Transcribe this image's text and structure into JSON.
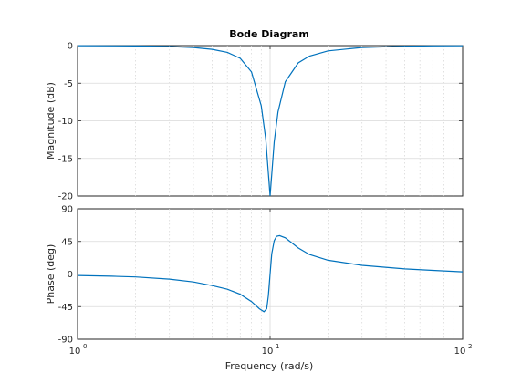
{
  "chart_data": {
    "type": "line",
    "title": "Bode Diagram",
    "xlabel": "Frequency  (rad/s)",
    "xscale": "log",
    "xlim": [
      1,
      100
    ],
    "xticks": [
      {
        "value": 1,
        "base": "10",
        "exp": "0"
      },
      {
        "value": 10,
        "base": "10",
        "exp": "1"
      },
      {
        "value": 100,
        "base": "10",
        "exp": "2"
      }
    ],
    "grid": true,
    "color": "#0072bd",
    "panels": [
      {
        "name": "magnitude",
        "ylabel": "Magnitude (dB)",
        "ylim": [
          -20,
          0
        ],
        "yticks": [
          0,
          -5,
          -10,
          -15,
          -20
        ],
        "ytick_labels": [
          "0",
          "-5",
          "-10",
          "-15",
          "-20"
        ],
        "x": [
          1,
          2,
          3,
          4,
          5,
          6,
          7,
          8,
          9,
          9.5,
          10,
          10.5,
          11,
          12,
          14,
          16,
          20,
          30,
          50,
          70,
          100
        ],
        "y": [
          -0.01,
          -0.05,
          -0.12,
          -0.25,
          -0.5,
          -0.9,
          -1.7,
          -3.5,
          -8.0,
          -12.5,
          -20.0,
          -12.8,
          -8.8,
          -4.8,
          -2.3,
          -1.4,
          -0.7,
          -0.25,
          -0.08,
          -0.04,
          -0.02
        ]
      },
      {
        "name": "phase",
        "ylabel": "Phase (deg)",
        "ylim": [
          -90,
          90
        ],
        "yticks": [
          90,
          45,
          0,
          -45,
          -90
        ],
        "ytick_labels": [
          "90",
          "45",
          "0",
          "-45",
          "-90"
        ],
        "x": [
          1,
          1.5,
          2,
          3,
          4,
          5,
          6,
          7,
          8,
          8.8,
          9.3,
          9.6,
          9.8,
          10,
          10.2,
          10.5,
          10.8,
          11.2,
          12,
          14,
          16,
          20,
          30,
          50,
          70,
          100
        ],
        "y": [
          -2,
          -3,
          -4,
          -7,
          -11,
          -16,
          -21,
          -28,
          -38,
          -48,
          -52,
          -48,
          -30,
          0,
          28,
          46,
          52,
          53,
          50,
          36,
          27,
          19,
          12,
          7,
          5,
          3
        ]
      }
    ]
  }
}
